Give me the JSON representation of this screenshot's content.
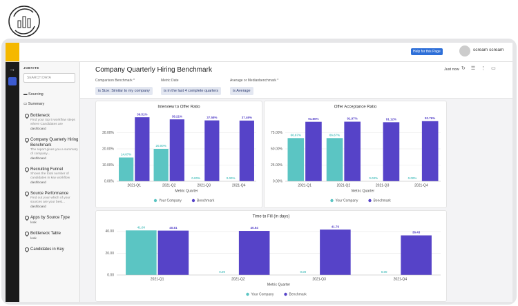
{
  "header": {
    "help": "Help for this Page",
    "user": "scream scream"
  },
  "sidebar": {
    "brand": "JOBVITE",
    "search": "SEARCH DATA",
    "folders": [
      "Sourcing",
      "Summary"
    ],
    "items": [
      {
        "title": "Bottleneck",
        "desc": "Find your top 5 workflow steps where Candidates are",
        "kind": "dashboard"
      },
      {
        "title": "Company Quarterly Hiring Benchmark",
        "desc": "The report gives you a summary of company...",
        "kind": "dashboard"
      },
      {
        "title": "Recruiting Funnel",
        "desc": "Shows the total number of candidates in key workflow",
        "kind": "dashboard"
      },
      {
        "title": "Source Performance",
        "desc": "Find out your which of your sources are your best...",
        "kind": "dashboard"
      },
      {
        "title": "Apps by Source Type",
        "kind": "look"
      },
      {
        "title": "Bottleneck Table",
        "kind": "look"
      },
      {
        "title": "Candidates in Key"
      }
    ]
  },
  "dashboard": {
    "title": "Company Quarterly Hiring Benchmark",
    "refreshed": "Just now",
    "filters": [
      {
        "label": "Comparison Benchmark *",
        "value": "is Size: Similar to my company"
      },
      {
        "label": "Metric Date",
        "value": "is in the last 4 complete quarters"
      },
      {
        "label": "Average or Medianbenchmark *",
        "value": "is Average"
      }
    ]
  },
  "chart_data": [
    {
      "type": "bar",
      "title": "Interview to Offer Ratio",
      "x_label": "Metric Quarter",
      "categories": [
        "2021-Q1",
        "2021-Q2",
        "2021-Q3",
        "2021-Q4"
      ],
      "series": [
        {
          "name": "Your Company",
          "color": "#5bc5c3",
          "values": [
            14.67,
            20.0,
            0,
            0
          ],
          "value_labels": [
            "14.67%",
            "20.00%",
            "0.00%",
            "0.00%"
          ]
        },
        {
          "name": "Benchmark",
          "color": "#5643c8",
          "values": [
            39.51,
            38.21,
            37.58,
            37.46
          ],
          "value_labels": [
            "39.51%",
            "38.21%",
            "37.58%",
            "37.46%"
          ]
        }
      ],
      "ylim": [
        0,
        40
      ],
      "yticks": [
        {
          "value": 0,
          "label": "0.00%"
        },
        {
          "value": 10,
          "label": "10.00%"
        },
        {
          "value": 20,
          "label": "20.00%"
        },
        {
          "value": 30,
          "label": "30.00%"
        }
      ],
      "grid": true
    },
    {
      "type": "bar",
      "title": "Offer Acceptance Ratio",
      "x_label": "Metric Quarter",
      "categories": [
        "2021-Q1",
        "2021-Q2",
        "2021-Q3",
        "2021-Q4"
      ],
      "series": [
        {
          "name": "Your Company",
          "color": "#5bc5c3",
          "values": [
            66.67,
            66.67,
            0,
            0
          ],
          "value_labels": [
            "66.67%",
            "66.67%",
            "0.00%",
            "0.00%"
          ]
        },
        {
          "name": "Benchmark",
          "color": "#5643c8",
          "values": [
            91.8,
            91.97,
            91.12,
            92.76
          ],
          "value_labels": [
            "91.80%",
            "91.97%",
            "91.12%",
            "92.76%"
          ]
        }
      ],
      "ylim": [
        0,
        100
      ],
      "yticks": [
        {
          "value": 0,
          "label": "0.00%"
        },
        {
          "value": 25,
          "label": "25.00%"
        },
        {
          "value": 50,
          "label": "50.00%"
        },
        {
          "value": 75,
          "label": "75.00%"
        }
      ],
      "grid": true
    },
    {
      "type": "bar",
      "title": "Time to Fill (in days)",
      "x_label": "Metric Quarter",
      "categories": [
        "2021-Q1",
        "2021-Q2",
        "2021-Q3",
        "2021-Q4"
      ],
      "series": [
        {
          "name": "Your Company",
          "color": "#5bc5c3",
          "values": [
            41,
            0,
            0,
            0
          ],
          "value_labels": [
            "41.00",
            "0.00",
            "0.00",
            "0.00"
          ]
        },
        {
          "name": "Benchmark",
          "color": "#5643c8",
          "values": [
            40.81,
            40.54,
            41.76,
            36.43
          ],
          "value_labels": [
            "40.81",
            "40.54",
            "41.76",
            "36.43"
          ]
        }
      ],
      "ylim": [
        0,
        45
      ],
      "yticks": [
        {
          "value": 0,
          "label": "0.00"
        },
        {
          "value": 20,
          "label": "20.00"
        },
        {
          "value": 40,
          "label": "40.00"
        }
      ],
      "grid": true
    }
  ]
}
